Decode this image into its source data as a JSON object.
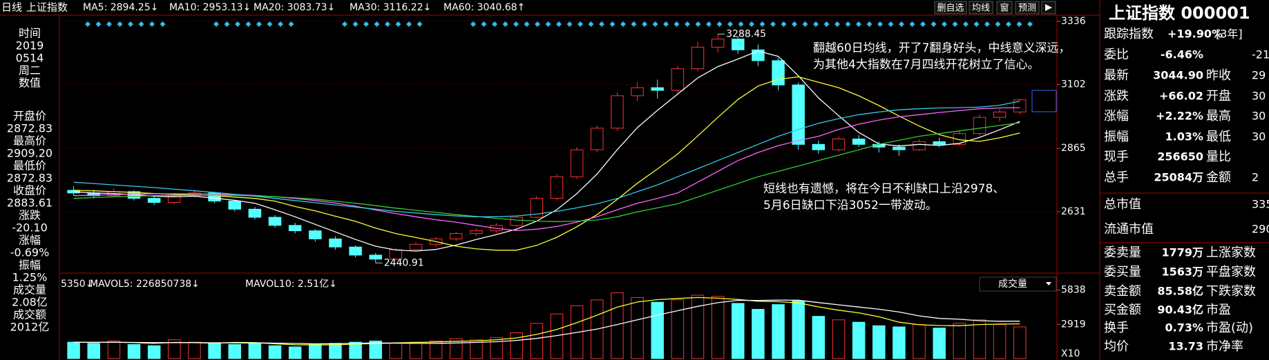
{
  "top_bar": {
    "period": "日线",
    "symbol": "上证指数",
    "buttons": [
      "删自选",
      "均线",
      "窗",
      "预测"
    ]
  },
  "left_panel": [
    {
      "text": "时间",
      "color": "#ffffff"
    },
    {
      "text": "2019",
      "color": "#ffffff"
    },
    {
      "text": "0514",
      "color": "#ffffff"
    },
    {
      "text": "周二",
      "color": "#ffffff"
    },
    {
      "text": "数值",
      "color": "#ffffff"
    },
    {
      "text": "开盘价",
      "color": "#ffffff"
    },
    {
      "text": "2872.83",
      "color": "#33ff33"
    },
    {
      "text": "最高价",
      "color": "#ffffff"
    },
    {
      "text": "2909.20",
      "color": "#ff3333"
    },
    {
      "text": "最低价",
      "color": "#ffffff"
    },
    {
      "text": "2872.83",
      "color": "#33ff33"
    },
    {
      "text": "收盘价",
      "color": "#ffffff"
    },
    {
      "text": "2883.61",
      "color": "#33ff33"
    },
    {
      "text": "涨跌",
      "color": "#ffffff"
    },
    {
      "text": "-20.10",
      "color": "#33ff33"
    },
    {
      "text": "涨幅",
      "color": "#ffffff"
    },
    {
      "text": "-0.69%",
      "color": "#33ff33"
    },
    {
      "text": "振幅",
      "color": "#ffffff"
    },
    {
      "text": "1.25%",
      "color": "#54ffff"
    },
    {
      "text": "成交量",
      "color": "#ffffff"
    },
    {
      "text": "2.08亿",
      "color": "#ffffff"
    },
    {
      "text": "成交额",
      "color": "#ffffff"
    },
    {
      "text": "2012亿",
      "color": "#54ffff"
    }
  ],
  "right_panel": {
    "title": "上证指数 000001",
    "rows": [
      {
        "label": "跟踪指数",
        "value": "+19.90%",
        "value2": "[3年]",
        "colors": [
          "#ff3333",
          "#ffffff"
        ]
      },
      {
        "label": "委比",
        "value": "-6.46%",
        "value2": "-21",
        "colors": [
          "#33ff33",
          "#33ff33"
        ]
      },
      {
        "label": "最新",
        "value": "3044.90",
        "label2": "昨收",
        "value2": "29",
        "colors": [
          "#ff3333",
          "#ffffff"
        ]
      },
      {
        "label": "涨跌",
        "value": "+66.02",
        "label2": "开盘",
        "value2": "30",
        "colors": [
          "#ff3333",
          "#ff3333"
        ]
      },
      {
        "label": "涨幅",
        "value": "+2.22%",
        "label2": "最高",
        "value2": "30",
        "colors": [
          "#ff3333",
          "#ff3333"
        ]
      },
      {
        "label": "振幅",
        "value": "1.03%",
        "label2": "最低",
        "value2": "30",
        "colors": [
          "#54ffff",
          "#ff3333"
        ]
      },
      {
        "label": "现手",
        "value": "256650",
        "label2": "量比",
        "colors": [
          "#ffff33",
          "#ffffff"
        ]
      },
      {
        "label": "总手",
        "value": "25084万",
        "label2": "金额",
        "value2": "2",
        "colors": [
          "#ffff33",
          "#ffff33"
        ]
      },
      {
        "label": "总市值",
        "value2": "335",
        "colors": [
          "#ffff33",
          "#ffff33"
        ]
      },
      {
        "label": "流通市值",
        "value2": "290",
        "colors": [
          "#ffff33",
          "#ffff33"
        ]
      },
      {
        "label": "委卖量",
        "value": "1779万",
        "label2": "上涨家数",
        "colors": [
          "#ffff33",
          "#ff3333"
        ]
      },
      {
        "label": "委买量",
        "value": "1563万",
        "label2": "平盘家数",
        "colors": [
          "#ff3333",
          "#ffffff"
        ]
      },
      {
        "label": "卖金额",
        "value": "85.58亿",
        "label2": "下跌家数",
        "colors": [
          "#ffff33",
          "#33ff33"
        ]
      },
      {
        "label": "买金额",
        "value": "90.43亿",
        "label2": "市盈",
        "colors": [
          "#ffff33",
          "#ffffff"
        ]
      },
      {
        "label": "换手",
        "value": "0.73%",
        "label2": "市盈(动)",
        "colors": [
          "#ffff33",
          "#ffffff"
        ]
      },
      {
        "label": "均价",
        "value": "13.73",
        "label2": "市净率",
        "colors": [
          "#ffff33",
          "#ffffff"
        ]
      }
    ]
  },
  "annotations": [
    [
      "翻越60日均线，开了7翻身好头，中线意义深远，",
      "为其他4大指数在7月四线开花树立了信心。"
    ],
    [
      "短线也有遗憾，将在今日不利缺口上沿2978、",
      "5月6日缺口下沿3052一带波动。"
    ]
  ],
  "chart_data": [
    {
      "type": "candlestick",
      "up_color": "#ff3232",
      "down_color": "#54ffff",
      "ylim": [
        2411,
        3338
      ],
      "yticks": [
        2631,
        2865,
        3102,
        3336
      ],
      "grid": true,
      "open": [
        2710,
        2700,
        2690,
        2705,
        2680,
        2665,
        2690,
        2700,
        2670,
        2640,
        2610,
        2580,
        2560,
        2530,
        2500,
        2470,
        2455,
        2490,
        2510,
        2530,
        2550,
        2560,
        2580,
        2610,
        2680,
        2760,
        2860,
        2940,
        3060,
        3090,
        3080,
        3160,
        3240,
        3270,
        3230,
        3190,
        3100,
        2880,
        2860,
        2900,
        2880,
        2870,
        2860,
        2890,
        2880,
        2920,
        2980,
        3000
      ],
      "high": [
        2725,
        2712,
        2718,
        2710,
        2688,
        2700,
        2712,
        2704,
        2675,
        2648,
        2618,
        2590,
        2566,
        2540,
        2506,
        2478,
        2496,
        2518,
        2536,
        2556,
        2568,
        2588,
        2616,
        2688,
        2770,
        2870,
        2950,
        3072,
        3110,
        3120,
        3170,
        3260,
        3288.45,
        3280,
        3250,
        3200,
        3110,
        2895,
        2910,
        2915,
        2890,
        2880,
        2898,
        2905,
        2928,
        2990,
        3012,
        3050
      ],
      "low": [
        2690,
        2680,
        2685,
        2672,
        2655,
        2660,
        2684,
        2662,
        2632,
        2602,
        2572,
        2550,
        2520,
        2490,
        2462,
        2440.91,
        2450,
        2482,
        2500,
        2522,
        2540,
        2552,
        2574,
        2606,
        2672,
        2752,
        2850,
        2930,
        3040,
        3050,
        3070,
        3150,
        3220,
        3215,
        3170,
        3080,
        2860,
        2845,
        2852,
        2870,
        2850,
        2838,
        2855,
        2870,
        2875,
        2912,
        2965,
        2990
      ],
      "close": [
        2700,
        2690,
        2705,
        2680,
        2665,
        2690,
        2700,
        2670,
        2640,
        2610,
        2580,
        2560,
        2530,
        2500,
        2470,
        2455,
        2490,
        2510,
        2530,
        2550,
        2560,
        2580,
        2610,
        2680,
        2760,
        2860,
        2940,
        3060,
        3090,
        3080,
        3160,
        3240,
        3270,
        3230,
        3190,
        3100,
        2880,
        2860,
        2900,
        2880,
        2870,
        2860,
        2890,
        2880,
        2920,
        2980,
        3000,
        3044.9
      ],
      "series": [
        {
          "name": "MA5: 2894.25↓",
          "color": "#ffffff",
          "values": [
            2705,
            2700,
            2698,
            2694,
            2688,
            2686,
            2688,
            2681,
            2673,
            2662,
            2638,
            2612,
            2584,
            2556,
            2528,
            2503,
            2489,
            2485,
            2491,
            2507,
            2528,
            2546,
            2566,
            2596,
            2638,
            2698,
            2770,
            2860,
            2942,
            3006,
            3066,
            3126,
            3168,
            3196,
            3226,
            3206,
            3134,
            3052,
            2986,
            2924,
            2882,
            2874,
            2880,
            2876,
            2884,
            2906,
            2934,
            2965
          ]
        },
        {
          "name": "MA10: 2953.13↓",
          "color": "#ffff33",
          "values": [
            2710,
            2708,
            2705,
            2702,
            2698,
            2695,
            2693,
            2690,
            2685,
            2680,
            2670,
            2650,
            2634,
            2614,
            2595,
            2570,
            2550,
            2535,
            2520,
            2503,
            2493,
            2488,
            2488,
            2506,
            2536,
            2575,
            2620,
            2676,
            2736,
            2789,
            2844,
            2911,
            2980,
            3046,
            3096,
            3121,
            3130,
            3110,
            3090,
            3060,
            3024,
            2985,
            2948,
            2916,
            2897,
            2891,
            2904,
            2922
          ]
        },
        {
          "name": "MA20: 3083.73↓",
          "color": "#ff66ff",
          "values": [
            2690,
            2692,
            2694,
            2696,
            2697,
            2697,
            2697,
            2696,
            2694,
            2691,
            2686,
            2680,
            2672,
            2663,
            2651,
            2637,
            2624,
            2612,
            2601,
            2592,
            2580,
            2569,
            2561,
            2566,
            2576,
            2592,
            2612,
            2638,
            2662,
            2680,
            2700,
            2740,
            2780,
            2820,
            2850,
            2875,
            2894,
            2910,
            2935,
            2955,
            2970,
            2982,
            2990,
            2998,
            3005,
            3012,
            3015,
            3016
          ]
        },
        {
          "name": "MA30: 3116.22↓",
          "color": "#33cc33",
          "values": [
            2680,
            2683,
            2686,
            2688,
            2690,
            2691,
            2692,
            2692,
            2691,
            2689,
            2686,
            2682,
            2677,
            2670,
            2662,
            2653,
            2644,
            2636,
            2628,
            2620,
            2613,
            2606,
            2600,
            2596,
            2594,
            2596,
            2600,
            2612,
            2630,
            2645,
            2660,
            2685,
            2710,
            2735,
            2760,
            2780,
            2800,
            2820,
            2840,
            2860,
            2880,
            2895,
            2910,
            2920,
            2930,
            2940,
            2950,
            2960
          ]
        },
        {
          "name": "MA60: 3040.68↑",
          "color": "#33ccee",
          "values": [
            2740,
            2735,
            2730,
            2725,
            2720,
            2714,
            2708,
            2702,
            2695,
            2688,
            2680,
            2672,
            2664,
            2656,
            2648,
            2640,
            2632,
            2626,
            2620,
            2615,
            2612,
            2612,
            2615,
            2622,
            2632,
            2645,
            2660,
            2680,
            2705,
            2730,
            2760,
            2790,
            2820,
            2850,
            2880,
            2910,
            2935,
            2958,
            2975,
            2990,
            3000,
            3008,
            3012,
            3015,
            3016,
            3018,
            3025,
            3040
          ]
        }
      ]
    },
    {
      "type": "bar",
      "legend_prefix": "5350↓",
      "unit_label": "X10",
      "dropdown": "成交量",
      "ylim": [
        0,
        6750
      ],
      "yticks": [
        2919,
        5838
      ],
      "values": [
        1400,
        1300,
        1500,
        1200,
        1100,
        1600,
        1400,
        1300,
        1200,
        1300,
        1100,
        1000,
        1200,
        1300,
        1400,
        1500,
        1300,
        1400,
        1500,
        1700,
        1600,
        1800,
        2200,
        3000,
        3800,
        4500,
        5000,
        5600,
        5200,
        4800,
        5000,
        5400,
        5300,
        4700,
        4200,
        4600,
        4900,
        3600,
        3300,
        3100,
        2800,
        2700,
        2900,
        2600,
        3000,
        3300,
        2900,
        2700
      ],
      "series": [
        {
          "name": "MAVOL5: 226850738↓",
          "color": "#ffff33",
          "values": [
            1400,
            1380,
            1400,
            1360,
            1300,
            1380,
            1360,
            1320,
            1380,
            1360,
            1260,
            1180,
            1160,
            1180,
            1240,
            1280,
            1340,
            1380,
            1420,
            1480,
            1500,
            1600,
            1760,
            2060,
            2480,
            3060,
            3700,
            4380,
            4820,
            5020,
            5120,
            5200,
            5140,
            5040,
            4880,
            4840,
            4740,
            4400,
            4120,
            3900,
            3560,
            3100,
            2880,
            2820,
            2800,
            2900,
            2940,
            2960
          ]
        },
        {
          "name": "MAVOL10: 2.51亿↓",
          "color": "#ffffff",
          "values": [
            1400,
            1390,
            1390,
            1380,
            1360,
            1360,
            1360,
            1350,
            1340,
            1340,
            1320,
            1290,
            1260,
            1270,
            1300,
            1330,
            1320,
            1300,
            1300,
            1330,
            1380,
            1440,
            1550,
            1720,
            1960,
            2230,
            2520,
            2900,
            3300,
            3700,
            4080,
            4450,
            4760,
            4960,
            4950,
            4980,
            4970,
            4770,
            4580,
            4390,
            4200,
            3970,
            3640,
            3420,
            3350,
            3230,
            3180,
            3190
          ]
        }
      ]
    }
  ]
}
